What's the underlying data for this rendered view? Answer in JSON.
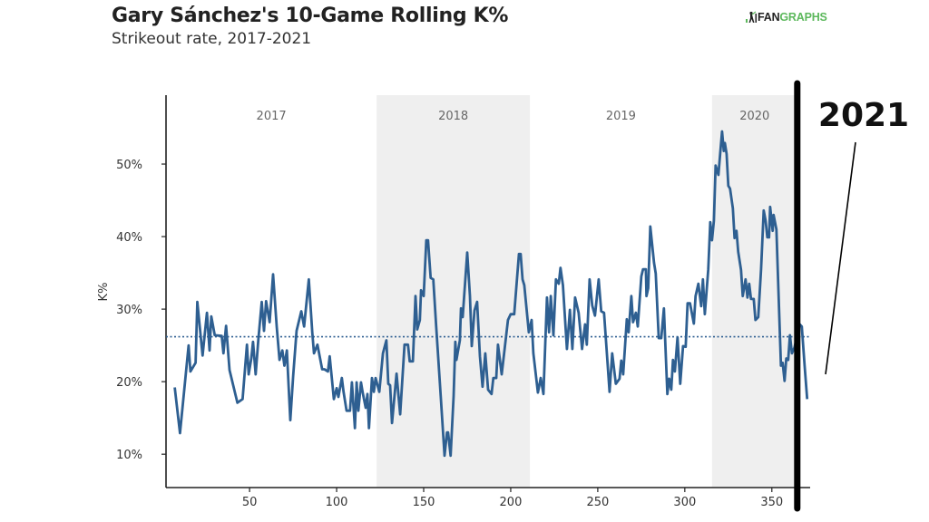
{
  "header": {
    "title": "Gary Sánchez's 10-Game Rolling K%",
    "subtitle": "Strikeout rate, 2017-2021",
    "logo_prefix": "FAN",
    "logo_suffix": "GRAPHS"
  },
  "colors": {
    "line": "#2e5f91",
    "average": "#2e5f91",
    "band": "#efefef",
    "axis": "#222222",
    "logo_green": "#5cb85c"
  },
  "chart_data": {
    "type": "line",
    "title": "Gary Sánchez's 10-Game Rolling K%",
    "subtitle": "Strikeout rate, 2017-2021",
    "xlabel": "",
    "ylabel": "K%",
    "xlim": [
      2,
      372
    ],
    "ylim": [
      5.4,
      59.5
    ],
    "xticks": [
      50,
      100,
      150,
      200,
      250,
      300,
      350
    ],
    "xtick_labels": [
      "50",
      "100",
      "150",
      "200",
      "250",
      "300",
      "350"
    ],
    "yticks": [
      10,
      20,
      30,
      40,
      50
    ],
    "ytick_labels": [
      "10%",
      "20%",
      "30%",
      "40%",
      "50%"
    ],
    "grid": false,
    "average_line": {
      "value": 26.2,
      "style": "dotted"
    },
    "season_bands": [
      {
        "label": "2017",
        "start": 2,
        "end": 123,
        "shaded": false
      },
      {
        "label": "2018",
        "start": 123,
        "end": 211,
        "shaded": true
      },
      {
        "label": "2019",
        "start": 211,
        "end": 315.6,
        "shaded": false
      },
      {
        "label": "2020",
        "start": 315.6,
        "end": 364.6,
        "shaded": true
      }
    ],
    "marker_line": {
      "x": 364.6
    },
    "annotation": {
      "text": "2021"
    },
    "series": [
      {
        "name": "10-Game Rolling K%",
        "x": [
          7,
          10,
          15,
          16,
          19,
          20,
          23,
          25.5,
          27,
          28,
          30,
          34,
          35,
          36.5,
          38.5,
          41,
          43,
          46,
          48.5,
          49.5,
          51,
          52,
          53.5,
          55,
          57,
          58.3,
          59.5,
          61.5,
          63.5,
          65.6,
          67.2,
          68.8,
          70,
          71.4,
          73.4,
          75,
          77,
          79.7,
          81.3,
          84,
          86,
          87,
          89,
          91.7,
          93,
          95,
          96,
          98.4,
          100,
          101,
          103,
          104,
          105.7,
          107.7,
          108.8,
          110.5,
          111.5,
          112.5,
          114,
          115,
          116.7,
          117.7,
          118.6,
          120.3,
          121.4,
          122.4,
          124.5,
          126.6,
          128.6,
          129.7,
          130.7,
          131.8,
          134.4,
          136.5,
          139,
          141,
          142,
          143.8,
          145.3,
          146.3,
          147.8,
          148.5,
          150,
          151.5,
          152.5,
          154,
          155.5,
          157.2,
          159.8,
          162,
          163.4,
          164,
          165.5,
          167.2,
          168.2,
          168.8,
          170.8,
          171.4,
          172.4,
          175,
          176.6,
          177.6,
          179.2,
          180.7,
          182.3,
          183.8,
          185.4,
          187,
          189,
          190,
          191.7,
          192.7,
          194.8,
          198.4,
          200,
          202,
          204.7,
          205.7,
          206.8,
          207.8,
          210.4,
          212,
          213,
          215.6,
          217.2,
          218.8,
          220.8,
          222,
          223,
          224.5,
          226,
          227.6,
          228.6,
          230,
          232.3,
          234,
          235.4,
          237,
          239,
          241,
          242.7,
          243.7,
          245.3,
          246.8,
          248.4,
          250.5,
          252,
          253.6,
          256.8,
          258.3,
          260.4,
          262.5,
          263.5,
          264.6,
          266.7,
          267.7,
          269.3,
          270.3,
          271.9,
          273,
          275,
          276,
          277.6,
          278,
          279,
          280.2,
          282.3,
          283.3,
          285,
          286.5,
          288,
          290,
          291,
          292.2,
          293.2,
          294.3,
          295.8,
          297.4,
          299,
          300.5,
          301.6,
          303,
          305.2,
          306.2,
          307.8,
          309.4,
          310.4,
          311.5,
          313.5,
          314.6,
          315.6,
          316.7,
          317.7,
          319.3,
          320.3,
          321.4,
          322.4,
          323,
          324,
          325,
          326,
          327.6,
          328.6,
          329.7,
          330.7,
          332.3,
          333.3,
          334.9,
          336,
          337,
          338,
          339.6,
          340.6,
          342.2,
          343.8,
          345.3,
          346.4,
          347.4,
          348.4,
          349,
          350.5,
          351,
          352.6,
          355.2,
          356.2,
          357.3,
          358.3,
          359.4,
          360.4,
          361.5,
          363,
          366,
          367.2,
          368.8,
          370.3
        ],
        "y": [
          19.2,
          12.9,
          25,
          21.4,
          22.6,
          31,
          23.6,
          29.5,
          24.3,
          29,
          26.4,
          26.3,
          23.9,
          27.7,
          21.6,
          19.1,
          17.1,
          17.6,
          25.1,
          21,
          23.2,
          25.5,
          21,
          25.7,
          31,
          27,
          31.1,
          28.2,
          34.8,
          27.6,
          23,
          24.3,
          22.2,
          24.3,
          14.7,
          20.7,
          27,
          29.7,
          27.6,
          34.1,
          26.8,
          23.9,
          25.1,
          21.7,
          21.7,
          21.4,
          23.5,
          17.6,
          19.1,
          17.9,
          20.5,
          18.6,
          16,
          16,
          19.9,
          13.6,
          19.9,
          16,
          19.9,
          18.5,
          16.4,
          18.3,
          13.6,
          20.5,
          18.6,
          20.5,
          18.6,
          23.9,
          25.7,
          19.7,
          19.5,
          14.3,
          21.1,
          15.5,
          25.1,
          25.1,
          22.8,
          22.8,
          31.8,
          27.2,
          28.5,
          32.6,
          31.8,
          39.5,
          39.5,
          34.3,
          34.1,
          27.6,
          18,
          9.8,
          13,
          13,
          9.8,
          18,
          25.5,
          23,
          25.7,
          30.1,
          28.9,
          37.8,
          31.8,
          24.9,
          29.8,
          31,
          23.5,
          19.3,
          23.9,
          18.9,
          18.3,
          20.5,
          20.5,
          25.1,
          21,
          28.5,
          29.3,
          29.3,
          37.6,
          37.6,
          34.1,
          33.3,
          26.8,
          28.5,
          23.9,
          18.5,
          20.5,
          18.3,
          31.6,
          26.8,
          31.8,
          26.4,
          34.1,
          33.5,
          35.7,
          33.3,
          24.5,
          29.9,
          24.5,
          31.6,
          29.5,
          24.5,
          27.9,
          25.1,
          34.1,
          30.5,
          29.1,
          34.1,
          29.7,
          29.5,
          18.6,
          23.9,
          19.7,
          20.4,
          22.9,
          21,
          28.6,
          26.8,
          31.8,
          28.2,
          29.5,
          27.6,
          34.5,
          35.5,
          35.5,
          31.8,
          32.9,
          41.4,
          36.4,
          34.9,
          26,
          26,
          30.1,
          18.3,
          20.4,
          18.9,
          23,
          21.4,
          26.1,
          19.7,
          24.9,
          24.8,
          30.8,
          30.8,
          28,
          31.8,
          33.5,
          30.4,
          34.1,
          29.3,
          35.5,
          42,
          39.5,
          42.2,
          49.8,
          48.5,
          51.4,
          54.5,
          51.8,
          52.9,
          51.4,
          47,
          46.6,
          43.9,
          39.8,
          40.8,
          37.9,
          35.4,
          31.8,
          34.1,
          31.6,
          33.5,
          31.4,
          31.4,
          28.5,
          28.9,
          35.5,
          43.6,
          42.2,
          39.9,
          39.9,
          44.1,
          40.8,
          43,
          41,
          22.2,
          22.6,
          20.1,
          23.2,
          23,
          26.4,
          23.9,
          24.7,
          27.9,
          27.6,
          22.2,
          17.6
        ]
      }
    ]
  }
}
